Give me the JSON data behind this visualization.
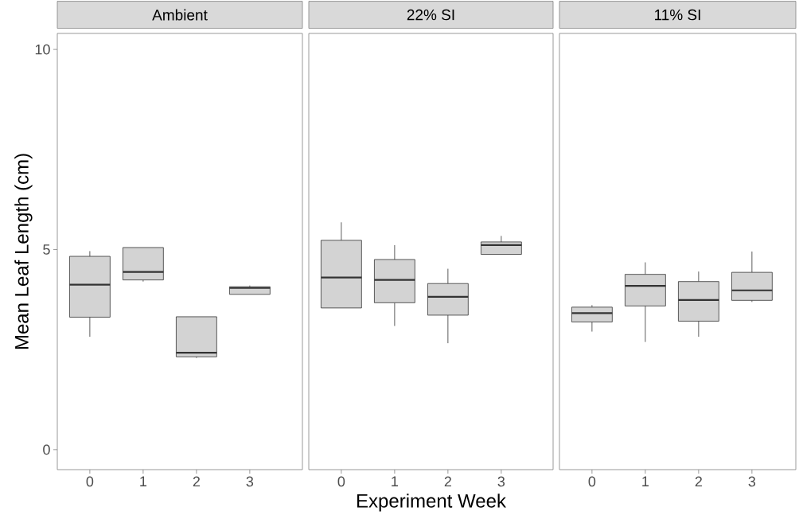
{
  "chart_data": [
    {
      "type": "box",
      "title": "Ambient",
      "ylabel": "Mean Leaf Length (cm)",
      "categories": [
        "0",
        "1",
        "2",
        "3"
      ],
      "ylim": [
        -0.5,
        10.4
      ],
      "yticks": [
        0,
        5,
        10
      ],
      "grid": false,
      "series": [
        {
          "color": "#d3d3d3",
          "boxes": [
            {
              "low": 2.82,
              "q1": 3.31,
              "median": 4.12,
              "q3": 4.83,
              "high": 4.96
            },
            {
              "low": 4.2,
              "q1": 4.24,
              "median": 4.44,
              "q3": 5.05,
              "high": 5.05
            },
            {
              "low": 2.29,
              "q1": 2.32,
              "median": 2.42,
              "q3": 3.32,
              "high": 3.32
            },
            {
              "low": 3.88,
              "q1": 3.88,
              "median": 4.04,
              "q3": 4.07,
              "high": 4.1
            }
          ]
        }
      ]
    },
    {
      "type": "box",
      "title": "22% SI",
      "xlabel": "Experiment Week",
      "categories": [
        "0",
        "1",
        "2",
        "3"
      ],
      "ylim": [
        -0.5,
        10.4
      ],
      "tick_labels": "x",
      "grid": false,
      "series": [
        {
          "color": "#d3d3d3",
          "boxes": [
            {
              "low": 3.54,
              "q1": 3.54,
              "median": 4.3,
              "q3": 5.23,
              "high": 5.68
            },
            {
              "low": 3.09,
              "q1": 3.67,
              "median": 4.24,
              "q3": 4.75,
              "high": 5.11
            },
            {
              "low": 2.66,
              "q1": 3.36,
              "median": 3.82,
              "q3": 4.15,
              "high": 4.52
            },
            {
              "low": 4.88,
              "q1": 4.88,
              "median": 5.11,
              "q3": 5.19,
              "high": 5.34
            }
          ]
        }
      ]
    },
    {
      "type": "box",
      "title": "11% SI",
      "categories": [
        "0",
        "1",
        "2",
        "3"
      ],
      "ylim": [
        -0.5,
        10.4
      ],
      "tick_labels": "x",
      "grid": false,
      "series": [
        {
          "color": "#d3d3d3",
          "boxes": [
            {
              "low": 2.95,
              "q1": 3.19,
              "median": 3.41,
              "q3": 3.56,
              "high": 3.61
            },
            {
              "low": 2.69,
              "q1": 3.59,
              "median": 4.09,
              "q3": 4.38,
              "high": 4.68
            },
            {
              "low": 2.82,
              "q1": 3.21,
              "median": 3.74,
              "q3": 4.2,
              "high": 4.45
            },
            {
              "low": 3.69,
              "q1": 3.73,
              "median": 3.98,
              "q3": 4.43,
              "high": 4.95
            }
          ]
        }
      ]
    }
  ]
}
